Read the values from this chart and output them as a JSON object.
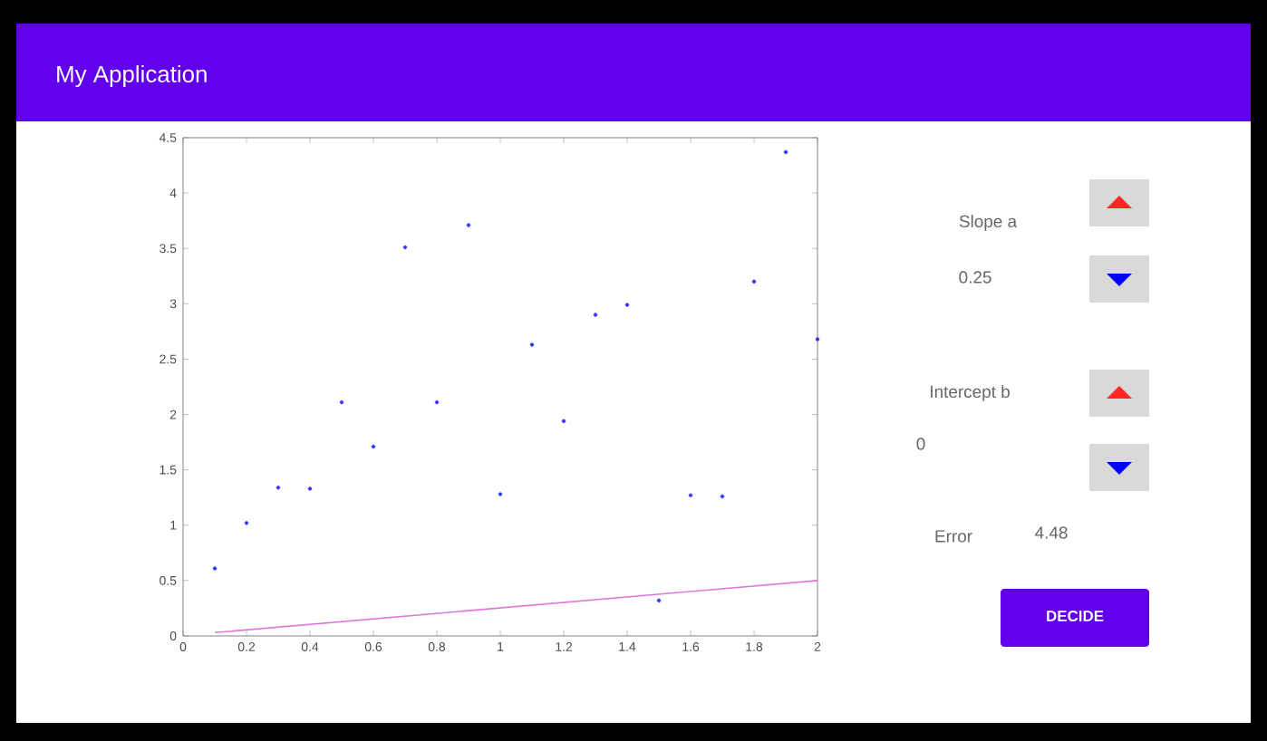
{
  "chart_data": {
    "type": "scatter",
    "title": "My Application",
    "x": [
      0.1,
      0.2,
      0.3,
      0.4,
      0.5,
      0.6,
      0.7,
      0.8,
      0.9,
      1.0,
      1.1,
      1.2,
      1.3,
      1.4,
      1.5,
      1.6,
      1.7,
      1.8,
      1.9,
      2.0
    ],
    "series": [
      {
        "color": "#3333ff",
        "marker": "circle",
        "values": [
          0.61,
          1.02,
          1.34,
          1.33,
          2.11,
          1.71,
          3.51,
          2.11,
          3.71,
          1.28,
          2.63,
          1.94,
          2.9,
          2.99,
          0.32,
          1.27,
          1.26,
          3.2,
          4.37,
          2.68
        ]
      },
      {
        "type": "line",
        "color": "#dd77dd",
        "marker": "none",
        "x": [
          0.1,
          2.0
        ],
        "values": [
          0.03,
          0.5
        ]
      }
    ],
    "xlim": [
      0,
      2
    ],
    "ylim": [
      0,
      4.5
    ],
    "xticks": [
      0,
      0.2,
      0.4,
      0.6,
      0.8,
      1,
      1.2,
      1.4,
      1.6,
      1.8,
      2
    ],
    "yticks": [
      0,
      0.5,
      1,
      1.5,
      2,
      2.5,
      3,
      3.5,
      4,
      4.5
    ],
    "grid": false,
    "annotations": [
      "Slope a",
      "0.25",
      "Intercept b",
      "0",
      "Error",
      "4.48",
      "DECIDE"
    ]
  }
}
